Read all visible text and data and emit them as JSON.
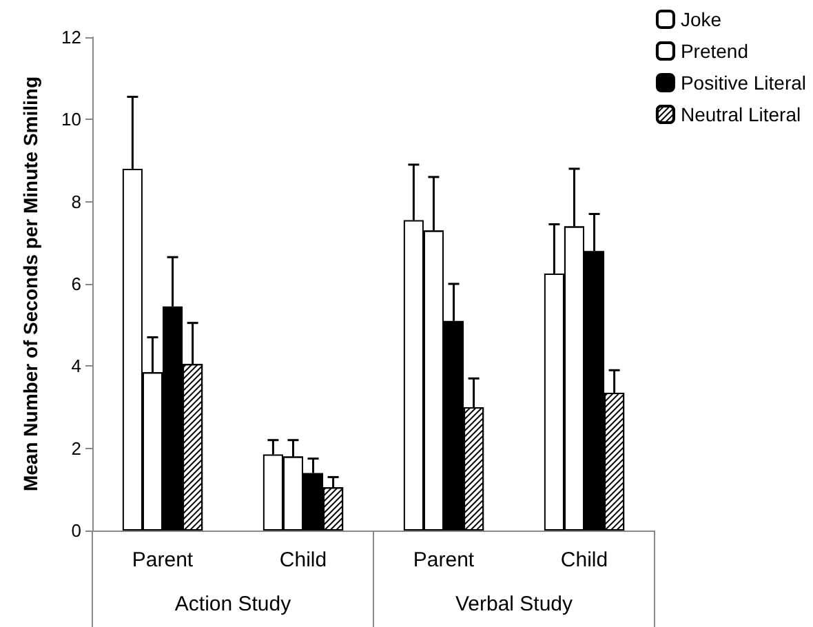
{
  "chart_data": {
    "type": "bar",
    "ylabel": "Mean Number of Seconds per Minute Smiling",
    "categories": [
      "Parent",
      "Child",
      "Parent",
      "Child"
    ],
    "annotations": [
      "Action Study",
      "Verbal Study"
    ],
    "ylim": [
      0,
      12
    ],
    "yticks": [
      0,
      2,
      4,
      6,
      8,
      10,
      12
    ],
    "grid": false,
    "legend": "top right",
    "series": [
      {
        "name": "Joke",
        "color": "#ffffff",
        "values": [
          8.8,
          1.85,
          7.55,
          6.25
        ],
        "errors": [
          [
            8.8,
            10.55
          ],
          [
            1.85,
            2.2
          ],
          [
            7.55,
            8.9
          ],
          [
            6.25,
            7.45
          ]
        ]
      },
      {
        "name": "Pretend",
        "color": "#ffffff",
        "values": [
          3.85,
          1.8,
          7.3,
          7.4
        ],
        "errors": [
          [
            3.85,
            4.7
          ],
          [
            1.8,
            2.2
          ],
          [
            7.3,
            8.6
          ],
          [
            7.4,
            8.8
          ]
        ]
      },
      {
        "name": "Positive Literal",
        "color": "#000000",
        "values": [
          5.45,
          1.4,
          5.1,
          6.8
        ],
        "errors": [
          [
            5.45,
            6.65
          ],
          [
            1.4,
            1.75
          ],
          [
            5.1,
            6.0
          ],
          [
            6.8,
            7.7
          ]
        ]
      },
      {
        "name": "Neutral Literal",
        "color": "#ffffff",
        "values": [
          4.05,
          1.05,
          3.0,
          3.35
        ],
        "errors": [
          [
            4.05,
            5.05
          ],
          [
            1.05,
            1.3
          ],
          [
            3.0,
            3.7
          ],
          [
            3.35,
            3.9
          ]
        ]
      }
    ]
  }
}
